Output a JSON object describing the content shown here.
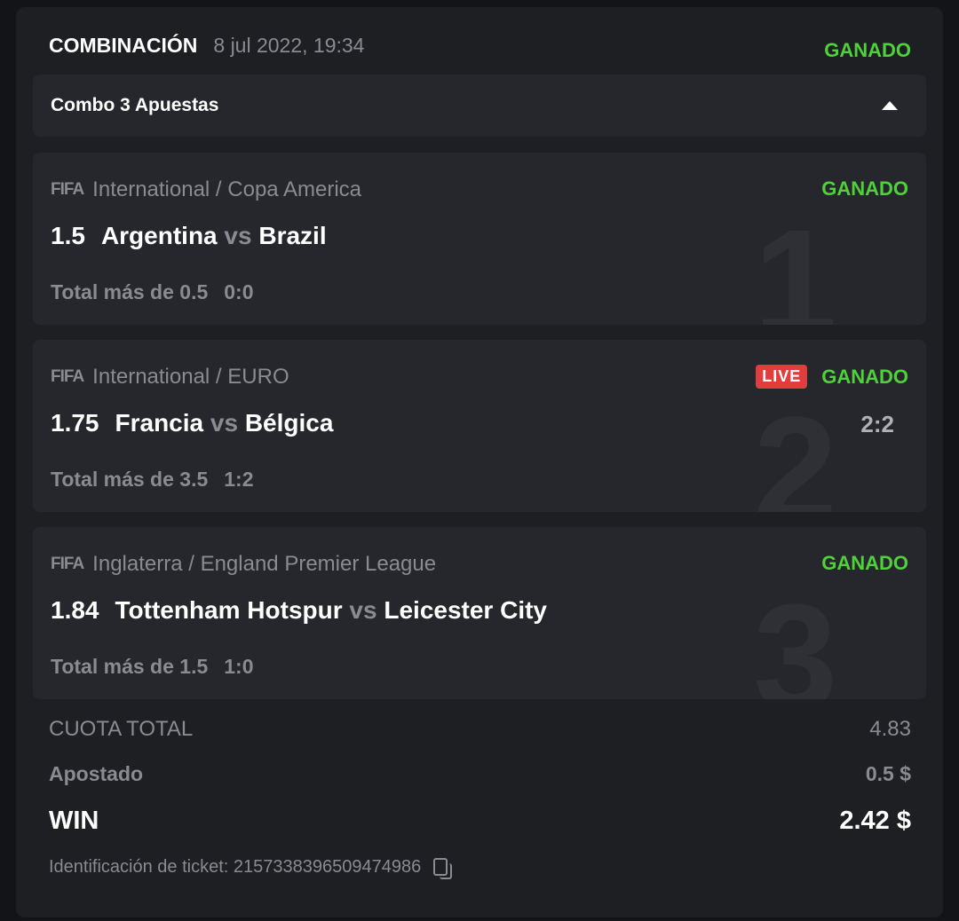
{
  "header": {
    "title": "COMBINACIÓN",
    "datetime": "8 jul 2022, 19:34",
    "status": "GANADO"
  },
  "combo": {
    "label": "Combo 3 Apuestas",
    "toggle_icon": "caret-up-icon"
  },
  "bets": [
    {
      "index": "1",
      "sport_logo": "FIFA",
      "league": "International / Copa America",
      "odds": "1.5",
      "home": "Argentina",
      "vs": "vs",
      "away": "Brazil",
      "market": "Total más de 0.5",
      "market_score": "0:0",
      "status": "GANADO",
      "live": "",
      "score": ""
    },
    {
      "index": "2",
      "sport_logo": "FIFA",
      "league": "International / EURO",
      "odds": "1.75",
      "home": "Francia",
      "vs": "vs",
      "away": "Bélgica",
      "market": "Total más de 3.5",
      "market_score": "1:2",
      "status": "GANADO",
      "live": "LIVE",
      "score": "2:2"
    },
    {
      "index": "3",
      "sport_logo": "FIFA",
      "league": "Inglaterra / England Premier League",
      "odds": "1.84",
      "home": "Tottenham Hotspur",
      "vs": "vs",
      "away": "Leicester City",
      "market": "Total más de 1.5",
      "market_score": "1:0",
      "status": "GANADO",
      "live": "",
      "score": ""
    }
  ],
  "summary": {
    "total_odds_label": "CUOTA TOTAL",
    "total_odds": "4.83",
    "staked_label": "Apostado",
    "staked": "0.5 $",
    "win_label": "WIN",
    "win": "2.42 $"
  },
  "ticket": {
    "label": "Identificación de ticket: 2157338396509474986",
    "copy_icon": "copy-icon"
  },
  "colors": {
    "won": "#4fd13a",
    "live": "#e23d3d"
  }
}
